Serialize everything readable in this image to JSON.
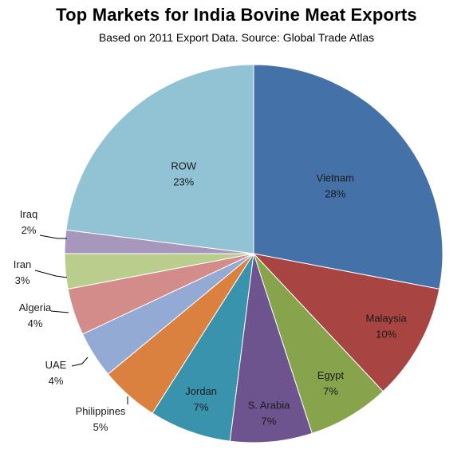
{
  "chart_data": {
    "type": "pie",
    "title": "Top Markets  for India Bovine Meat Exports",
    "subtitle": "Based on 2011 Export Data.  Source: Global Trade Atlas",
    "slices": [
      {
        "name": "Vietnam",
        "value": 28,
        "label": "28%",
        "color": "#4472A8"
      },
      {
        "name": "Malaysia",
        "value": 10,
        "label": "10%",
        "color": "#A84442"
      },
      {
        "name": "Egypt",
        "value": 7,
        "label": "7%",
        "color": "#87A44C"
      },
      {
        "name": "S. Arabia",
        "value": 7,
        "label": "7%",
        "color": "#6E548E"
      },
      {
        "name": "Jordan",
        "value": 7,
        "label": "7%",
        "color": "#3A93AD"
      },
      {
        "name": "Philippines",
        "value": 5,
        "label": "5%",
        "color": "#DB8140"
      },
      {
        "name": "UAE",
        "value": 4,
        "label": "4%",
        "color": "#93AAD4"
      },
      {
        "name": "Algeria",
        "value": 4,
        "label": "4%",
        "color": "#D48C8A"
      },
      {
        "name": "Iran",
        "value": 3,
        "label": "3%",
        "color": "#B9CE8D"
      },
      {
        "name": "Iraq",
        "value": 2,
        "label": "2%",
        "color": "#A797BC"
      },
      {
        "name": "ROW",
        "value": 23,
        "label": "23%",
        "color": "#92C3D4"
      }
    ],
    "start_angle_deg": 0,
    "direction": "clockwise",
    "legend": "none"
  }
}
